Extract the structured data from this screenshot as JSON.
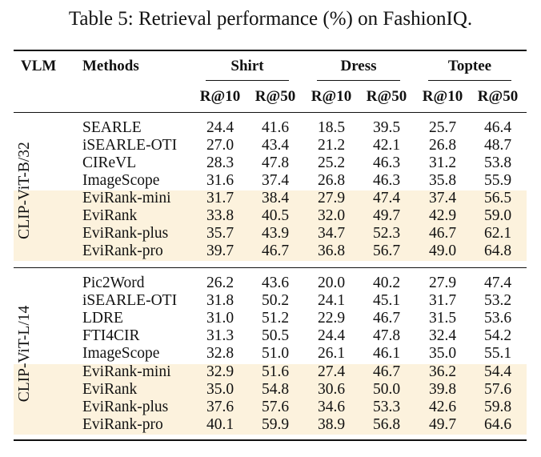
{
  "caption": "Table 5: Retrieval performance (%) on FashionIQ.",
  "header": {
    "vlm": "VLM",
    "methods": "Methods",
    "groups": [
      "Shirt",
      "Dress",
      "Toptee"
    ],
    "metrics": [
      "R@10",
      "R@50",
      "R@10",
      "R@50",
      "R@10",
      "R@50"
    ]
  },
  "sections": [
    {
      "vlm": "CLIP-ViT-B/32",
      "rows": [
        {
          "method": "SEARLE",
          "values": [
            "24.4",
            "41.6",
            "18.5",
            "39.5",
            "25.7",
            "46.4"
          ],
          "highlight": false
        },
        {
          "method": "iSEARLE-OTI",
          "values": [
            "27.0",
            "43.4",
            "21.2",
            "42.1",
            "26.8",
            "48.7"
          ],
          "highlight": false
        },
        {
          "method": "CIReVL",
          "values": [
            "28.3",
            "47.8",
            "25.2",
            "46.3",
            "31.2",
            "53.8"
          ],
          "highlight": false
        },
        {
          "method": "ImageScope",
          "values": [
            "31.6",
            "37.4",
            "26.8",
            "46.3",
            "35.8",
            "55.9"
          ],
          "highlight": false
        },
        {
          "method": "EviRank-mini",
          "values": [
            "31.7",
            "38.4",
            "27.9",
            "47.4",
            "37.4",
            "56.5"
          ],
          "highlight": true
        },
        {
          "method": "EviRank",
          "values": [
            "33.8",
            "40.5",
            "32.0",
            "49.7",
            "42.9",
            "59.0"
          ],
          "highlight": true
        },
        {
          "method": "EviRank-plus",
          "values": [
            "35.7",
            "43.9",
            "34.7",
            "52.3",
            "46.7",
            "62.1"
          ],
          "highlight": true
        },
        {
          "method": "EviRank-pro",
          "values": [
            "39.7",
            "46.7",
            "36.8",
            "56.7",
            "49.0",
            "64.8"
          ],
          "highlight": true
        }
      ]
    },
    {
      "vlm": "CLIP-ViT-L/14",
      "rows": [
        {
          "method": "Pic2Word",
          "values": [
            "26.2",
            "43.6",
            "20.0",
            "40.2",
            "27.9",
            "47.4"
          ],
          "highlight": false
        },
        {
          "method": "iSEARLE-OTI",
          "values": [
            "31.8",
            "50.2",
            "24.1",
            "45.1",
            "31.7",
            "53.2"
          ],
          "highlight": false
        },
        {
          "method": "LDRE",
          "values": [
            "31.0",
            "51.2",
            "22.9",
            "46.7",
            "31.5",
            "53.6"
          ],
          "highlight": false
        },
        {
          "method": "FTI4CIR",
          "values": [
            "31.3",
            "50.5",
            "24.4",
            "47.8",
            "32.4",
            "54.2"
          ],
          "highlight": false
        },
        {
          "method": "ImageScope",
          "values": [
            "32.8",
            "51.0",
            "26.1",
            "46.1",
            "35.0",
            "55.1"
          ],
          "highlight": false
        },
        {
          "method": "EviRank-mini",
          "values": [
            "32.9",
            "51.6",
            "27.4",
            "46.7",
            "36.2",
            "54.4"
          ],
          "highlight": true
        },
        {
          "method": "EviRank",
          "values": [
            "35.0",
            "54.8",
            "30.6",
            "50.0",
            "39.8",
            "57.6"
          ],
          "highlight": true
        },
        {
          "method": "EviRank-plus",
          "values": [
            "37.6",
            "57.6",
            "34.6",
            "53.3",
            "42.6",
            "59.8"
          ],
          "highlight": true
        },
        {
          "method": "EviRank-pro",
          "values": [
            "40.1",
            "59.9",
            "38.9",
            "56.8",
            "49.7",
            "64.6"
          ],
          "highlight": true
        }
      ]
    }
  ],
  "colors": {
    "highlight": "#fcf2dd",
    "rule": "#111111"
  }
}
